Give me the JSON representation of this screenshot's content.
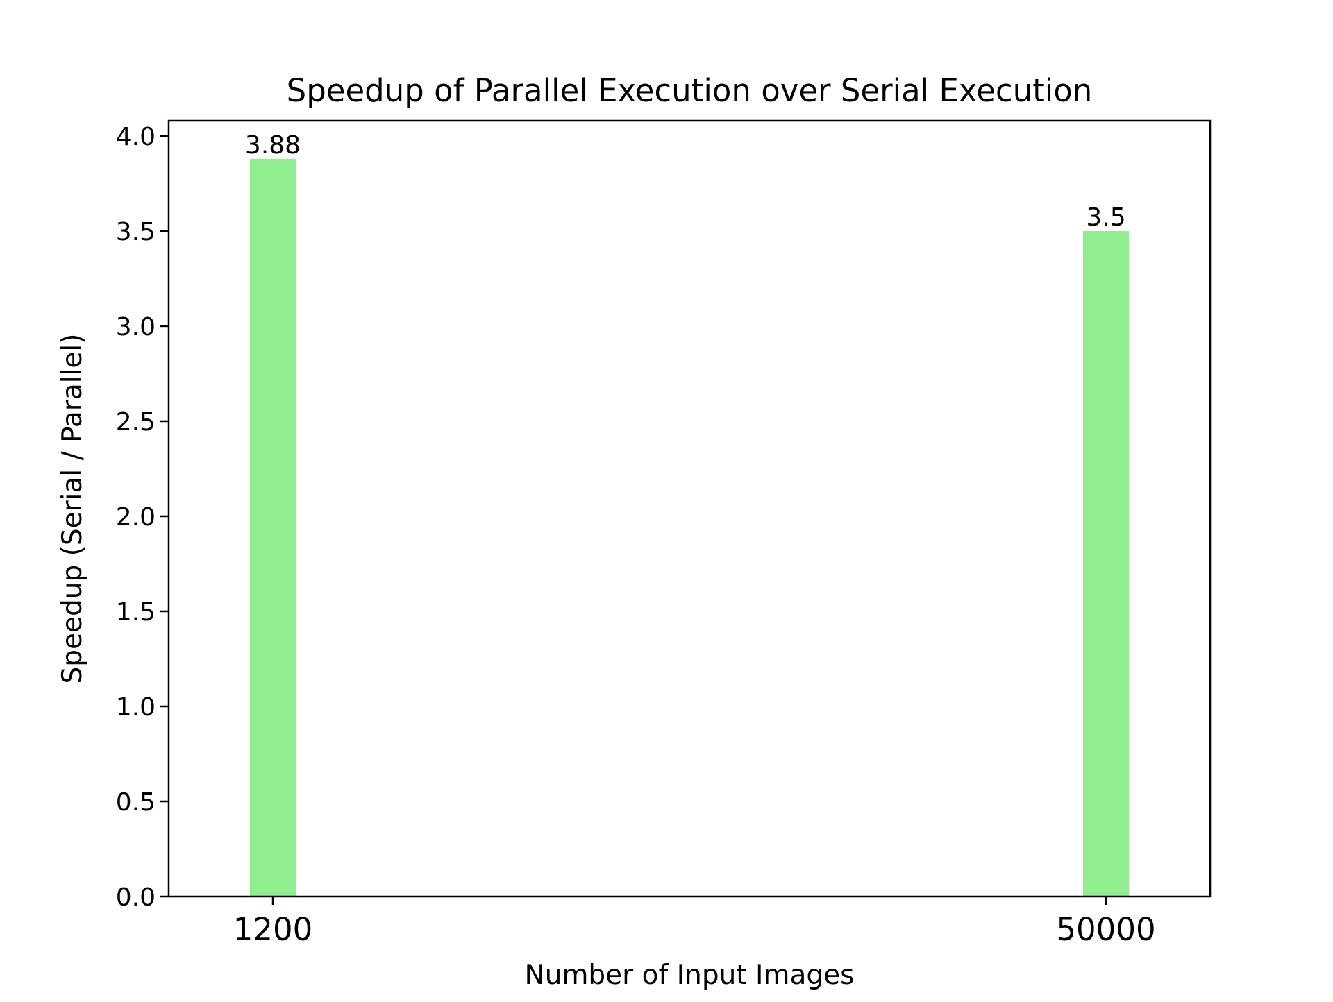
{
  "chart_data": {
    "type": "bar",
    "title": "Speedup of Parallel Execution over Serial Execution",
    "xlabel": "Number of Input Images",
    "ylabel": "Speedup (Serial / Parallel)",
    "categories": [
      "1200",
      "50000"
    ],
    "values": [
      3.88,
      3.5
    ],
    "value_labels": [
      "3.88",
      "3.5"
    ],
    "ylim": [
      0,
      4.08
    ],
    "yticks": [
      0.0,
      0.5,
      1.0,
      1.5,
      2.0,
      2.5,
      3.0,
      3.5,
      4.0
    ],
    "ytick_labels": [
      "0.0",
      "0.5",
      "1.0",
      "1.5",
      "2.0",
      "2.5",
      "3.0",
      "3.5",
      "4.0"
    ],
    "bar_color": "#90ee90",
    "grid": false,
    "legend": "none"
  }
}
